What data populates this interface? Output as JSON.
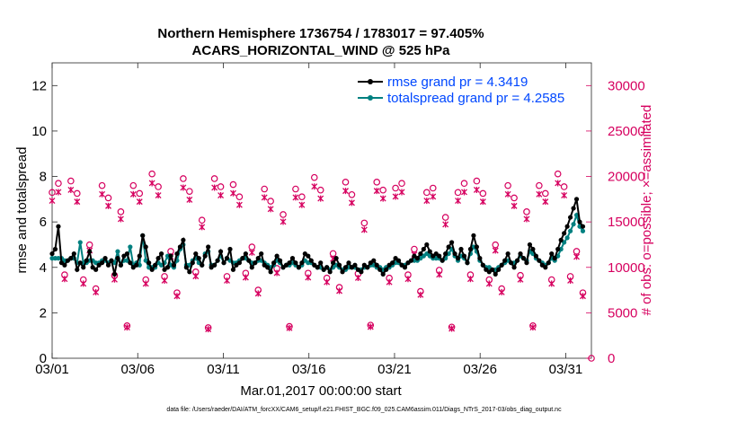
{
  "colors": {
    "rmse": "#000000",
    "spread": "#008080",
    "obs": "#d6005f",
    "legend_text": "#0047ff",
    "axes": "#262626"
  },
  "chart_data": {
    "type": "line",
    "title_line1": "Northern Hemisphere 1736754 / 1783017 = 97.405%",
    "title_line2": "ACARS_HORIZONTAL_WIND @ 525 hPa",
    "ylabel_left": "rmse and totalspread",
    "ylabel_right": "# of obs: o=possible; ×=assimilated",
    "xlabel": "Mar.01,2017 00:00:00 start",
    "footnote": "data file: /Users/raeder/DAI/ATM_forcXX/CAM6_setup/f.e21.FHIST_BGC.f09_025.CAM6assim.011/Diags_NTrS_2017-03/obs_diag_output.nc",
    "xlim": [
      0,
      31.5
    ],
    "ylim_left": [
      0,
      13
    ],
    "ylim_right": [
      0,
      32500
    ],
    "x_ticks": [
      0,
      5,
      10,
      15,
      20,
      25,
      30
    ],
    "x_tick_labels": [
      "03/01",
      "03/06",
      "03/11",
      "03/16",
      "03/21",
      "03/26",
      "03/31"
    ],
    "y_left_ticks": [
      0,
      2,
      4,
      6,
      8,
      10,
      12
    ],
    "y_left_tick_labels": [
      "0",
      "2",
      "4",
      "6",
      "8",
      "10",
      "12"
    ],
    "y_right_ticks": [
      0,
      5000,
      10000,
      15000,
      20000,
      25000,
      30000
    ],
    "y_right_tick_labels": [
      "0",
      "5000",
      "10000",
      "15000",
      "20000",
      "25000",
      "30000"
    ],
    "legend": [
      {
        "label": "rmse grand pr = 4.3419",
        "series": "rmse"
      },
      {
        "label": "totalspread grand pr = 4.2585",
        "series": "spread"
      }
    ],
    "obs_cycle": [
      19000,
      18500,
      9000,
      19500,
      18500,
      9000,
      12000,
      7500,
      19000,
      18000,
      9500,
      15500,
      3500
    ],
    "series": [
      {
        "name": "rmse",
        "values": [
          4.6,
          4.8,
          5.8,
          4.2,
          4.1,
          4.3,
          4.4,
          4.6,
          3.9,
          4.2,
          4.0,
          4.3,
          4.7,
          4.0,
          3.9,
          4.1,
          4.2,
          4.4,
          4.1,
          4.3,
          3.7,
          4.4,
          4.1,
          4.5,
          4.6,
          4.2,
          4.0,
          4.1,
          4.5,
          5.4,
          4.9,
          4.2,
          3.9,
          4.1,
          4.4,
          4.6,
          3.9,
          4.0,
          4.5,
          4.1,
          4.6,
          4.9,
          5.2,
          4.0,
          3.8,
          4.2,
          4.6,
          4.4,
          4.1,
          4.5,
          4.9,
          4.0,
          4.1,
          4.3,
          4.7,
          4.2,
          4.4,
          4.8,
          3.9,
          4.1,
          4.2,
          4.4,
          4.6,
          4.3,
          4.0,
          4.2,
          4.4,
          4.6,
          4.1,
          4.0,
          3.8,
          4.2,
          4.5,
          4.3,
          4.0,
          4.1,
          4.2,
          4.4,
          4.2,
          4.0,
          4.2,
          4.6,
          4.5,
          4.3,
          4.1,
          4.0,
          4.2,
          3.9,
          4.0,
          3.8,
          4.2,
          4.4,
          4.1,
          3.8,
          4.0,
          4.2,
          4.0,
          4.1,
          3.9,
          3.8,
          4.1,
          4.0,
          4.2,
          4.3,
          4.1,
          3.9,
          3.7,
          3.9,
          4.1,
          4.2,
          4.4,
          4.3,
          4.1,
          4.0,
          4.2,
          4.3,
          4.5,
          4.4,
          4.6,
          4.8,
          5.0,
          4.7,
          4.5,
          4.6,
          4.5,
          4.3,
          4.6,
          4.9,
          5.1,
          4.6,
          4.4,
          4.8,
          4.5,
          4.2,
          4.8,
          5.4,
          4.9,
          4.4,
          4.1,
          3.9,
          3.8,
          3.9,
          3.7,
          3.9,
          4.1,
          4.3,
          4.6,
          4.2,
          4.0,
          4.3,
          4.6,
          4.4,
          4.2,
          5.0,
          4.8,
          4.5,
          4.3,
          4.1,
          4.0,
          4.2,
          4.6,
          4.4,
          4.8,
          5.2,
          5.5,
          5.8,
          6.2,
          6.6,
          7.0,
          6.0,
          5.8
        ]
      },
      {
        "name": "spread",
        "values": [
          4.4,
          4.4,
          4.4,
          4.4,
          4.3,
          4.3,
          4.4,
          4.4,
          4.2,
          5.1,
          4.2,
          4.2,
          4.3,
          4.3,
          4.2,
          4.2,
          4.3,
          4.3,
          4.2,
          4.3,
          4.2,
          4.7,
          4.1,
          4.3,
          4.3,
          4.9,
          4.1,
          4.2,
          4.1,
          5.4,
          4.3,
          4.0,
          4.0,
          4.0,
          4.2,
          4.1,
          4.2,
          4.5,
          4.1,
          4.0,
          4.3,
          4.8,
          5.0,
          4.1,
          4.1,
          4.3,
          4.4,
          4.2,
          4.1,
          4.6,
          4.7,
          4.1,
          4.1,
          4.3,
          4.5,
          4.2,
          4.4,
          4.3,
          4.2,
          4.2,
          4.3,
          4.4,
          4.4,
          4.3,
          4.2,
          4.2,
          4.3,
          4.3,
          4.2,
          4.1,
          4.0,
          4.1,
          4.3,
          4.2,
          4.0,
          4.1,
          4.1,
          4.2,
          4.1,
          4.0,
          4.1,
          4.3,
          4.2,
          4.2,
          4.1,
          4.0,
          4.0,
          3.9,
          4.0,
          3.9,
          4.0,
          4.1,
          4.0,
          3.9,
          3.9,
          4.0,
          4.0,
          4.0,
          3.9,
          3.9,
          4.0,
          4.0,
          4.1,
          4.1,
          4.0,
          4.0,
          3.9,
          4.0,
          4.0,
          4.1,
          4.2,
          4.2,
          4.1,
          4.1,
          4.2,
          4.3,
          4.3,
          4.3,
          4.4,
          4.5,
          4.6,
          4.5,
          4.4,
          4.4,
          4.4,
          4.3,
          4.4,
          4.6,
          4.8,
          4.5,
          4.3,
          4.5,
          4.4,
          4.2,
          4.6,
          4.9,
          4.7,
          4.3,
          4.1,
          4.0,
          4.0,
          3.9,
          3.9,
          4.0,
          4.1,
          4.2,
          4.3,
          4.2,
          4.2,
          4.3,
          4.5,
          4.4,
          4.3,
          4.7,
          4.6,
          4.4,
          4.3,
          4.2,
          4.1,
          4.2,
          4.4,
          4.3,
          4.5,
          4.8,
          5.1,
          5.3,
          5.6,
          5.9,
          6.3,
          5.8,
          5.6
        ]
      }
    ]
  }
}
